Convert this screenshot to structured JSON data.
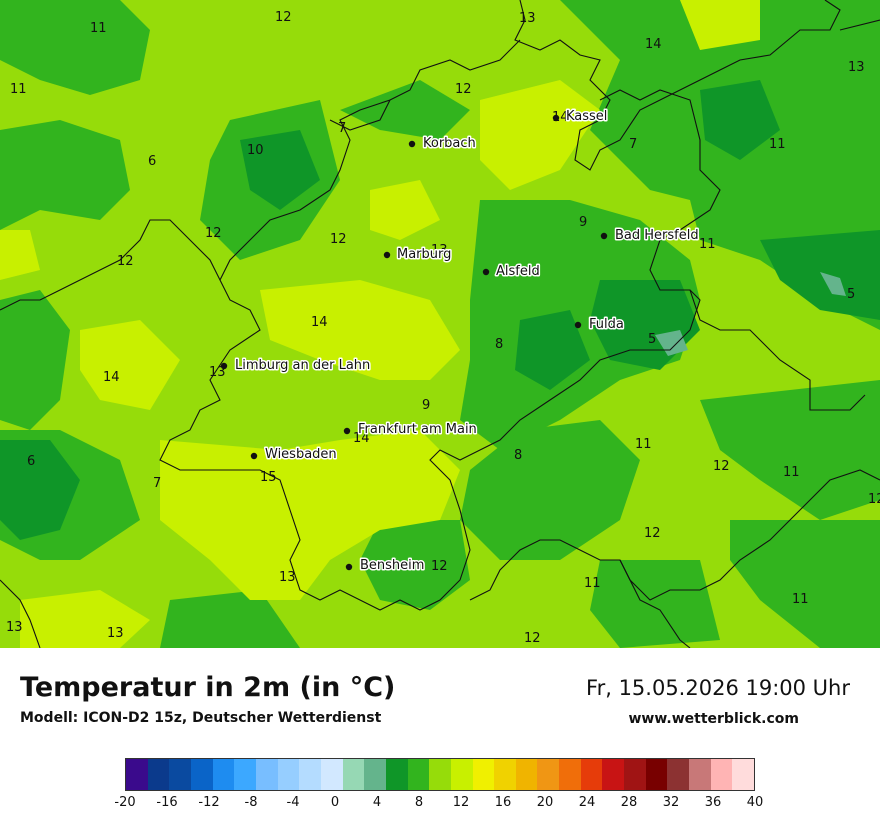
{
  "header": {
    "title": "Temperatur in 2m (in °C)",
    "model": "Modell: ICON-D2 15z, Deutscher Wetterdienst",
    "datetime": "Fr, 15.05.2026 19:00 Uhr",
    "site": "www.wetterblick.com"
  },
  "cities": [
    {
      "name": "Kassel"
    },
    {
      "name": "Korbach"
    },
    {
      "name": "Bad Hersfeld"
    },
    {
      "name": "Marburg"
    },
    {
      "name": "Alsfeld"
    },
    {
      "name": "Fulda"
    },
    {
      "name": "Limburg an der Lahn"
    },
    {
      "name": "Frankfurt am Main"
    },
    {
      "name": "Wiesbaden"
    },
    {
      "name": "Bensheim"
    }
  ],
  "temperature_labels": [
    "11",
    "12",
    "13",
    "14",
    "11",
    "13",
    "12",
    "7",
    "6",
    "10",
    "14",
    "7",
    "11",
    "12",
    "12",
    "13",
    "9",
    "11",
    "12",
    "14",
    "5",
    "8",
    "5",
    "13",
    "14",
    "9",
    "14",
    "8",
    "11",
    "12",
    "11",
    "6",
    "7",
    "15",
    "12",
    "12",
    "13",
    "12",
    "11",
    "13",
    "13",
    "12",
    "11"
  ],
  "legend": {
    "colors": [
      "#3a0a8c",
      "#0b3a8c",
      "#0a4aa0",
      "#0a64c8",
      "#1e8cf0",
      "#3ca8ff",
      "#78beff",
      "#96ceff",
      "#b4dcff",
      "#d2e8ff",
      "#96d8b4",
      "#64b48c",
      "#0f9628",
      "#32b41e",
      "#96dc0a",
      "#c8f000",
      "#f0f000",
      "#f0d200",
      "#f0b400",
      "#f09614",
      "#f06e0a",
      "#e63c0a",
      "#c81414",
      "#a01414",
      "#780000",
      "#8c3232",
      "#c87878",
      "#ffb4b4",
      "#ffdcdc"
    ],
    "ticks": [
      "-20",
      "-16",
      "-12",
      "-8",
      "-4",
      "0",
      "4",
      "8",
      "12",
      "16",
      "20",
      "24",
      "28",
      "32",
      "36",
      "40"
    ]
  }
}
